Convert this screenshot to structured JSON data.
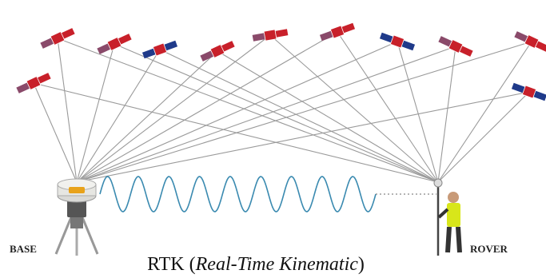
{
  "labels": {
    "base": "BASE",
    "rover": "ROVER"
  },
  "caption": {
    "prefix": "RTK (",
    "italic": "Real-Time Kinematic",
    "suffix": ")"
  }
}
